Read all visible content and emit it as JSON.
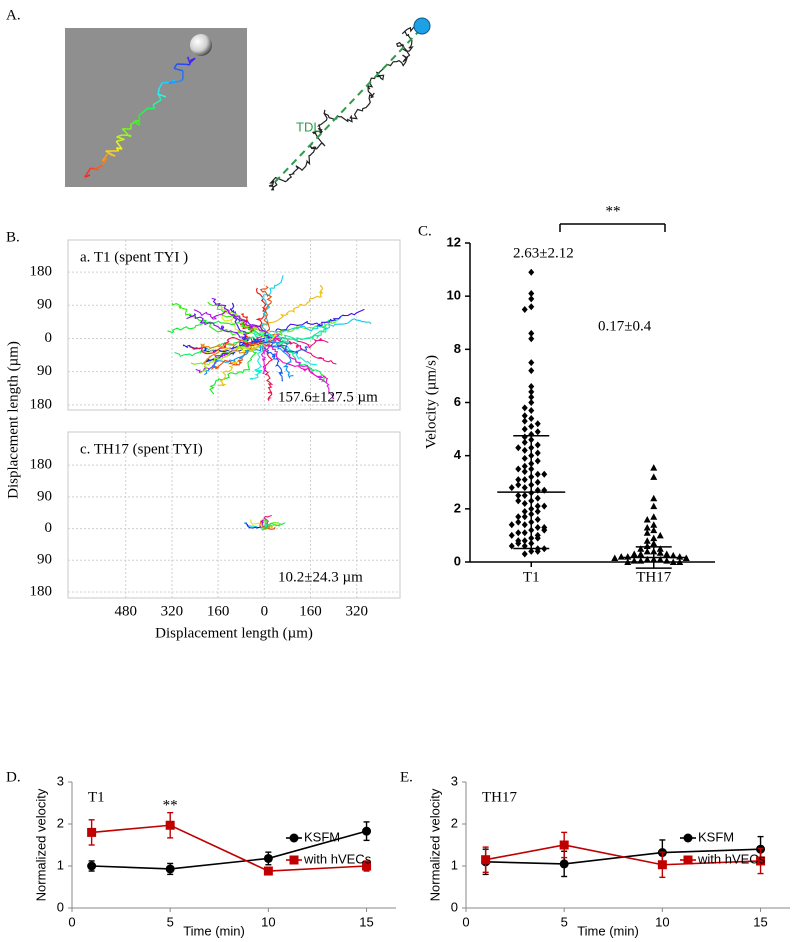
{
  "panel_labels": [
    "A.",
    "B.",
    "C.",
    "D.",
    "E."
  ],
  "panel_a": {
    "annotation": "TDL"
  },
  "chart_data": [
    {
      "type": "trajectory",
      "title": "a. T1 (spent TYI )",
      "annotation": "157.6±127.5 µm",
      "ylabel": "Displacement length (µm)",
      "xlim": [
        -680,
        470
      ],
      "ylim": [
        -194,
        267
      ],
      "yticks": [
        180,
        90,
        0,
        {
          "value": -90,
          "label": "90"
        },
        {
          "value": -180,
          "label": "180"
        }
      ],
      "grid": true
    },
    {
      "type": "trajectory",
      "title": "c. TH17 (spent TYI)",
      "annotation": "10.2±24.3  µm",
      "xlabel": "Displacement length (µm)",
      "xlim": [
        -680,
        470
      ],
      "ylim": [
        -197,
        274
      ],
      "xticks": [
        {
          "value": -480,
          "label": "480"
        },
        {
          "value": -320,
          "label": "320"
        },
        {
          "value": -160,
          "label": "160"
        },
        0,
        160,
        320
      ],
      "yticks": [
        180,
        90,
        0,
        {
          "value": -90,
          "label": "90"
        },
        {
          "value": -180,
          "label": "180"
        }
      ],
      "grid": true
    },
    {
      "type": "strip",
      "ylabel": "Velocity (µm/s)",
      "categories": [
        "T1",
        "TH17"
      ],
      "ylim": [
        0,
        12
      ],
      "yticks": [
        0,
        2,
        4,
        6,
        8,
        10,
        12
      ],
      "annotations": [
        "2.63±2.12",
        "0.17±0.4",
        "**"
      ],
      "means": [
        2.63,
        0.17
      ],
      "errors": [
        2.12,
        0.4
      ],
      "series": [
        {
          "marker": "diamond",
          "color": "#000000",
          "values": [
            10.9,
            10.1,
            9.9,
            9.6,
            9.5,
            8.6,
            8.4,
            7.5,
            7.2,
            6.6,
            6.4,
            6.2,
            6.0,
            5.8,
            5.7,
            5.5,
            5.4,
            5.3,
            5.2,
            5.1,
            5.0,
            4.9,
            4.8,
            4.7,
            4.6,
            4.5,
            4.4,
            4.3,
            4.2,
            4.1,
            4.0,
            3.9,
            3.8,
            3.7,
            3.6,
            3.5,
            3.4,
            3.3,
            3.2,
            3.1,
            3.0,
            2.9,
            2.8,
            2.7,
            2.6,
            2.5,
            2.4,
            2.3,
            2.2,
            2.1,
            2.0,
            1.9,
            1.8,
            1.7,
            1.6,
            1.5,
            1.4,
            1.3,
            1.2,
            1.1,
            1.0,
            0.9,
            0.8,
            0.7,
            0.6,
            0.5,
            0.4,
            0.3,
            3.5,
            3.3,
            2.9,
            2.7,
            2.5,
            2.3,
            2.1,
            1.9,
            1.7,
            1.5,
            1.3,
            1.1,
            0.9,
            0.7,
            0.5,
            1.4,
            1.2,
            1.0,
            0.8,
            0.6,
            0.4,
            2.8,
            3.1,
            4.3
          ]
        },
        {
          "marker": "triangle",
          "color": "#000000",
          "values": [
            3.55,
            3.2,
            2.4,
            2.1,
            1.7,
            1.6,
            1.4,
            1.3,
            1.2,
            1.1,
            1.0,
            0.9,
            0.8,
            0.7,
            0.6,
            0.5,
            0.5,
            0.4,
            0.4,
            0.35,
            0.3,
            0.3,
            0.3,
            0.25,
            0.2,
            0.2,
            0.2,
            0.15,
            0.15,
            0.1,
            0.1,
            0.1,
            0.05,
            0.05,
            0.05,
            0.0,
            0.0,
            0.0
          ]
        }
      ]
    },
    {
      "type": "line",
      "ylabel": "Normalized velocity",
      "xlabel": "Time (min)",
      "annotations": [
        "T1",
        "**"
      ],
      "x": [
        1,
        5,
        10,
        15
      ],
      "xlim": [
        0,
        16.5
      ],
      "xticks": [
        0,
        5,
        10,
        15
      ],
      "ylim": [
        0,
        3
      ],
      "yticks": [
        0,
        1,
        2,
        3
      ],
      "legend": "lower right",
      "series": [
        {
          "name": "KSFM",
          "color": "#000000",
          "marker": "circle",
          "values": [
            1.0,
            0.93,
            1.18,
            1.83
          ],
          "errors": [
            0.12,
            0.13,
            0.15,
            0.22
          ]
        },
        {
          "name": "with hVECs",
          "color": "#c00000",
          "marker": "square",
          "values": [
            1.8,
            1.97,
            0.88,
            1.0
          ],
          "errors": [
            0.3,
            0.3,
            0.07,
            0.12
          ]
        }
      ]
    },
    {
      "type": "line",
      "ylabel": "Normalized velocity",
      "xlabel": "Time (min)",
      "annotations": [
        "TH17"
      ],
      "x": [
        1,
        5,
        10,
        15
      ],
      "xlim": [
        0,
        16.5
      ],
      "xticks": [
        0,
        5,
        10,
        15
      ],
      "ylim": [
        0,
        3
      ],
      "yticks": [
        0,
        1,
        2,
        3
      ],
      "legend": "lower right",
      "series": [
        {
          "name": "KSFM",
          "color": "#000000",
          "marker": "circle",
          "values": [
            1.1,
            1.05,
            1.32,
            1.4
          ],
          "errors": [
            0.3,
            0.3,
            0.3,
            0.3
          ]
        },
        {
          "name": "with hVECs",
          "color": "#c00000",
          "marker": "square",
          "values": [
            1.15,
            1.5,
            1.03,
            1.12
          ],
          "errors": [
            0.3,
            0.3,
            0.3,
            0.3
          ]
        }
      ]
    }
  ]
}
